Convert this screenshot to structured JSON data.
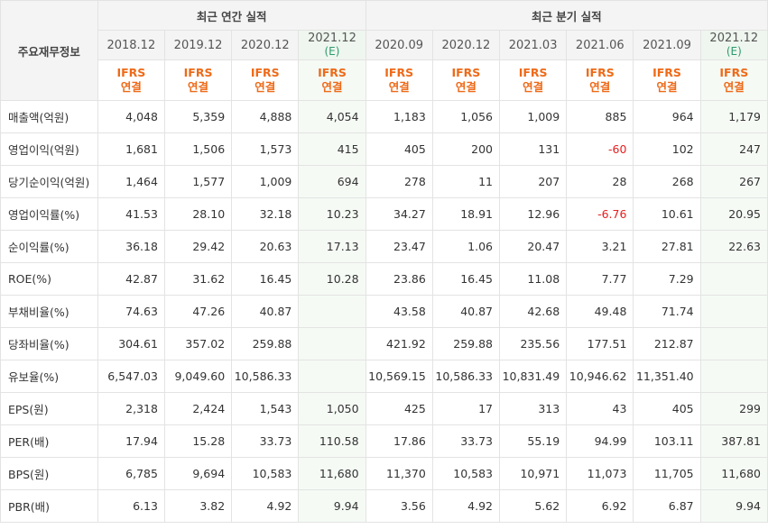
{
  "corner_label": "주요재무정보",
  "groups": {
    "annual": "최근 연간 실적",
    "quarter": "최근 분기 실적"
  },
  "periods": [
    {
      "date": "2018.12",
      "est": "",
      "ifrs": "IFRS",
      "basis": "연결"
    },
    {
      "date": "2019.12",
      "est": "",
      "ifrs": "IFRS",
      "basis": "연결"
    },
    {
      "date": "2020.12",
      "est": "",
      "ifrs": "IFRS",
      "basis": "연결"
    },
    {
      "date": "2021.12",
      "est": "(E)",
      "ifrs": "IFRS",
      "basis": "연결"
    },
    {
      "date": "2020.09",
      "est": "",
      "ifrs": "IFRS",
      "basis": "연결"
    },
    {
      "date": "2020.12",
      "est": "",
      "ifrs": "IFRS",
      "basis": "연결"
    },
    {
      "date": "2021.03",
      "est": "",
      "ifrs": "IFRS",
      "basis": "연결"
    },
    {
      "date": "2021.06",
      "est": "",
      "ifrs": "IFRS",
      "basis": "연결"
    },
    {
      "date": "2021.09",
      "est": "",
      "ifrs": "IFRS",
      "basis": "연결"
    },
    {
      "date": "2021.12",
      "est": "(E)",
      "ifrs": "IFRS",
      "basis": "연결"
    }
  ],
  "rows": [
    {
      "label": "매출액(억원)",
      "values": [
        "4,048",
        "5,359",
        "4,888",
        "4,054",
        "1,183",
        "1,056",
        "1,009",
        "885",
        "964",
        "1,179"
      ]
    },
    {
      "label": "영업이익(억원)",
      "values": [
        "1,681",
        "1,506",
        "1,573",
        "415",
        "405",
        "200",
        "131",
        "-60",
        "102",
        "247"
      ]
    },
    {
      "label": "당기순이익(억원)",
      "values": [
        "1,464",
        "1,577",
        "1,009",
        "694",
        "278",
        "11",
        "207",
        "28",
        "268",
        "267"
      ]
    },
    {
      "label": "영업이익률(%)",
      "values": [
        "41.53",
        "28.10",
        "32.18",
        "10.23",
        "34.27",
        "18.91",
        "12.96",
        "-6.76",
        "10.61",
        "20.95"
      ]
    },
    {
      "label": "순이익률(%)",
      "values": [
        "36.18",
        "29.42",
        "20.63",
        "17.13",
        "23.47",
        "1.06",
        "20.47",
        "3.21",
        "27.81",
        "22.63"
      ]
    },
    {
      "label": "ROE(%)",
      "values": [
        "42.87",
        "31.62",
        "16.45",
        "10.28",
        "23.86",
        "16.45",
        "11.08",
        "7.77",
        "7.29",
        ""
      ]
    },
    {
      "label": "부채비율(%)",
      "values": [
        "74.63",
        "47.26",
        "40.87",
        "",
        "43.58",
        "40.87",
        "42.68",
        "49.48",
        "71.74",
        ""
      ]
    },
    {
      "label": "당좌비율(%)",
      "values": [
        "304.61",
        "357.02",
        "259.88",
        "",
        "421.92",
        "259.88",
        "235.56",
        "177.51",
        "212.87",
        ""
      ]
    },
    {
      "label": "유보율(%)",
      "values": [
        "6,547.03",
        "9,049.60",
        "10,586.33",
        "",
        "10,569.15",
        "10,586.33",
        "10,831.49",
        "10,946.62",
        "11,351.40",
        ""
      ]
    },
    {
      "label": "EPS(원)",
      "values": [
        "2,318",
        "2,424",
        "1,543",
        "1,050",
        "425",
        "17",
        "313",
        "43",
        "405",
        "299"
      ]
    },
    {
      "label": "PER(배)",
      "values": [
        "17.94",
        "15.28",
        "33.73",
        "110.58",
        "17.86",
        "33.73",
        "55.19",
        "94.99",
        "103.11",
        "387.81"
      ]
    },
    {
      "label": "BPS(원)",
      "values": [
        "6,785",
        "9,694",
        "10,583",
        "11,680",
        "11,370",
        "10,583",
        "10,971",
        "11,073",
        "11,705",
        "11,680"
      ]
    },
    {
      "label": "PBR(배)",
      "values": [
        "6.13",
        "3.82",
        "4.92",
        "9.94",
        "3.56",
        "4.92",
        "5.62",
        "6.92",
        "6.87",
        "9.94"
      ]
    }
  ],
  "colors": {
    "ifrs": "#ee6a18",
    "estimate": "#2e9a6b",
    "negative": "#e61e1e"
  }
}
